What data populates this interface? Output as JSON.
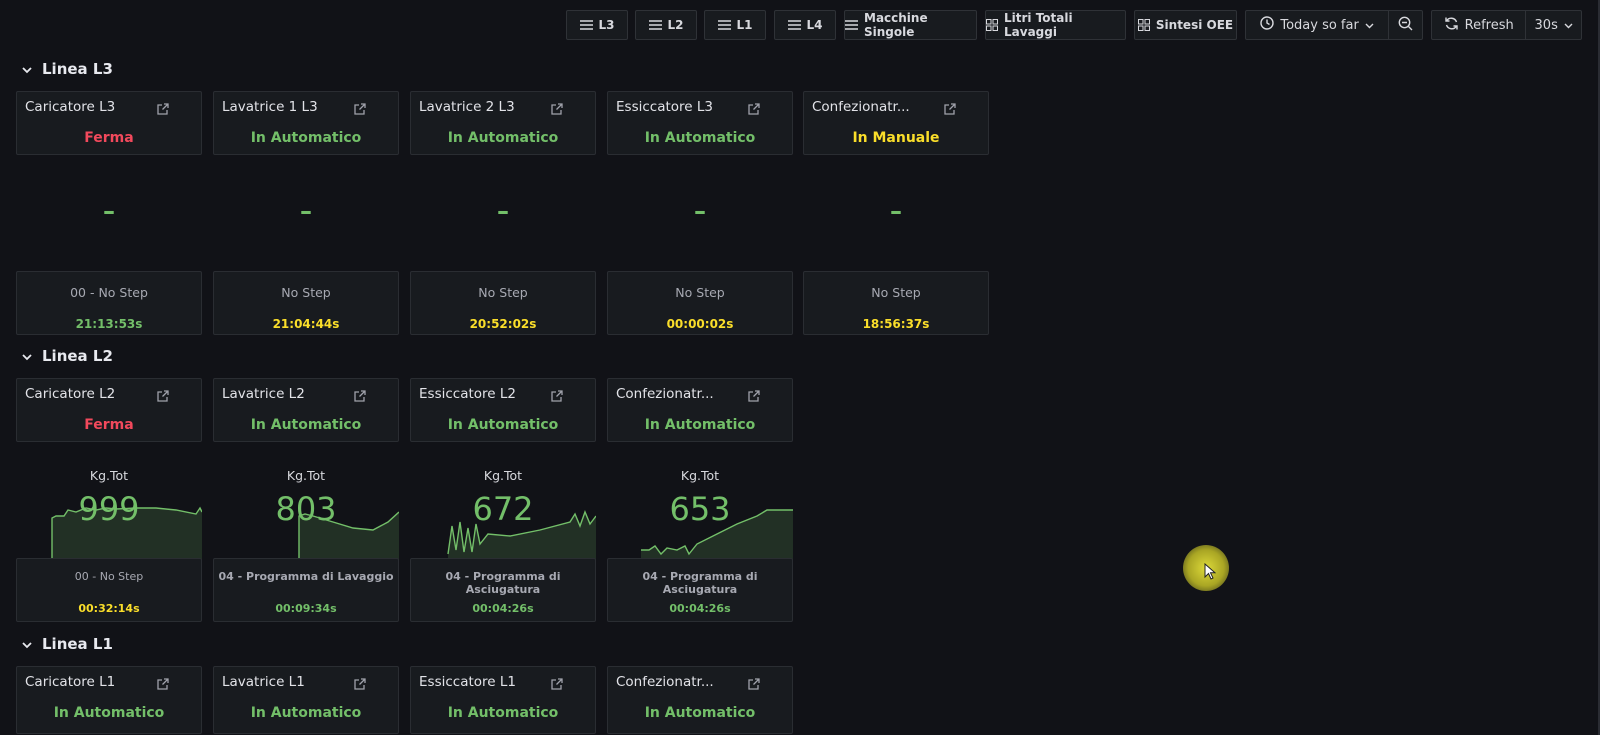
{
  "toolbar": {
    "buttons": [
      {
        "label": "L3",
        "icon": "list-icon"
      },
      {
        "label": "L2",
        "icon": "list-icon"
      },
      {
        "label": "L1",
        "icon": "list-icon"
      },
      {
        "label": "L4",
        "icon": "list-icon"
      },
      {
        "label": "Macchine Singole",
        "icon": "list-icon"
      },
      {
        "label": "Litri Totali Lavaggi",
        "icon": "grid-icon"
      },
      {
        "label": "Sintesi OEE",
        "icon": "grid-icon"
      }
    ],
    "time_range": "Today so far",
    "refresh_label": "Refresh",
    "refresh_interval": "30s"
  },
  "rows": {
    "l3": {
      "title": "Linea L3",
      "panels": [
        {
          "title": "Caricatore L3",
          "status": "Ferma",
          "value": "–",
          "step": "00 - No Step",
          "time": "21:13:53s"
        },
        {
          "title": "Lavatrice 1 L3",
          "status": "In Automatico",
          "value": "–",
          "step": "No Step",
          "time": "21:04:44s"
        },
        {
          "title": "Lavatrice 2 L3",
          "status": "In Automatico",
          "value": "–",
          "step": "No Step",
          "time": "20:52:02s"
        },
        {
          "title": "Essiccatore L3",
          "status": "In Automatico",
          "value": "–",
          "step": "No Step",
          "time": "00:00:02s"
        },
        {
          "title": "Confezionatr...",
          "status": "In Manuale",
          "value": "–",
          "step": "No Step",
          "time": "18:56:37s"
        }
      ]
    },
    "l2": {
      "title": "Linea L2",
      "panels": [
        {
          "title": "Caricatore L2",
          "status": "Ferma",
          "kg_label": "Kg.Tot",
          "kg_value": "999",
          "step": "00 - No Step",
          "time": "00:32:14s"
        },
        {
          "title": "Lavatrice L2",
          "status": "In Automatico",
          "kg_label": "Kg.Tot",
          "kg_value": "803",
          "step": "04 - Programma di Lavaggio",
          "time": "00:09:34s"
        },
        {
          "title": "Essiccatore L2",
          "status": "In Automatico",
          "kg_label": "Kg.Tot",
          "kg_value": "672",
          "step": "04 - Programma di Asciugatura",
          "time": "00:04:26s"
        },
        {
          "title": "Confezionatr...",
          "status": "In Automatico",
          "kg_label": "Kg.Tot",
          "kg_value": "653",
          "step": "04 - Programma di Asciugatura",
          "time": "00:04:26s"
        }
      ]
    },
    "l1": {
      "title": "Linea L1",
      "panels": [
        {
          "title": "Caricatore L1",
          "status": "In Automatico"
        },
        {
          "title": "Lavatrice L1",
          "status": "In Automatico"
        },
        {
          "title": "Essiccatore L1",
          "status": "In Automatico"
        },
        {
          "title": "Confezionatr...",
          "status": "In Automatico"
        }
      ]
    }
  },
  "colors": {
    "ferma": "#f2495c",
    "automatico": "#73bf69",
    "manuale": "#fade2a",
    "step_orange": "#ff9830"
  }
}
